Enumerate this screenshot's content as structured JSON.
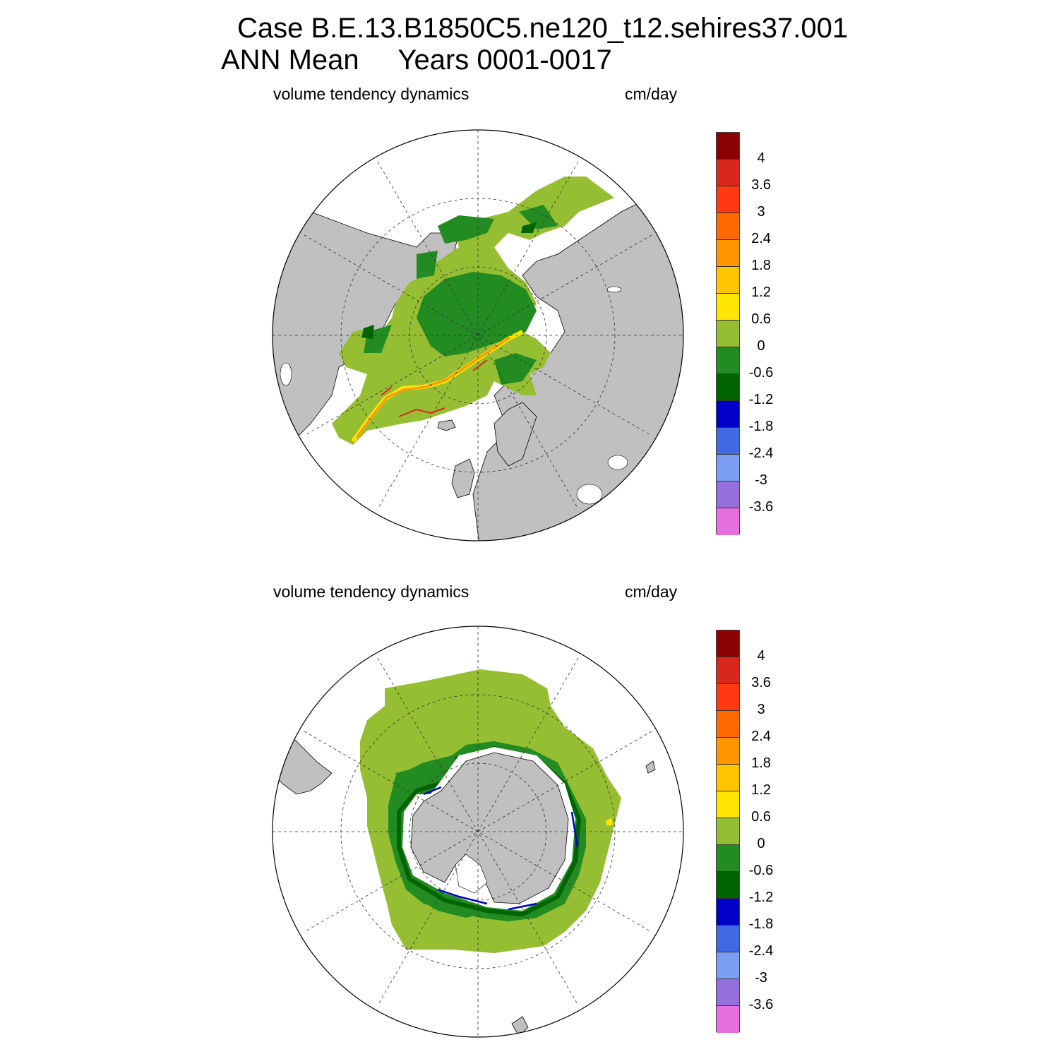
{
  "title": {
    "case": "Case B.E.13.B1850C5.ne120_t12.sehires37.001",
    "line2": "ANN Mean     Years 0001-0017"
  },
  "panels": [
    {
      "id": "nh",
      "left_label": "volume tendency dynamics",
      "right_label": "cm/day"
    },
    {
      "id": "sh",
      "left_label": "volume tendency dynamics",
      "right_label": "cm/day"
    }
  ],
  "colorbar": {
    "labels": [
      "4",
      "3.6",
      "3",
      "2.4",
      "1.8",
      "1.2",
      "0.6",
      "0",
      "-0.6",
      "-1.2",
      "-1.8",
      "-2.4",
      "-3",
      "-3.6"
    ],
    "colors": [
      "#8b0000",
      "#d8281c",
      "#ff3a10",
      "#ff6a00",
      "#ff9600",
      "#ffc400",
      "#ffe600",
      "#96be32",
      "#228b22",
      "#006400",
      "#0000c8",
      "#4169e1",
      "#7b9ef0",
      "#9370db",
      "#e66fe0"
    ]
  },
  "map_colors": {
    "land": "#c0c0c0",
    "ocean": "#ffffff",
    "positive_small": "#96be32",
    "negative_small": "#228b22",
    "negative_mid": "#006400",
    "negative_large": "#0000c8",
    "edge_yellow": "#ffe600",
    "edge_orange": "#ff9600",
    "edge_red": "#d8281c"
  }
}
